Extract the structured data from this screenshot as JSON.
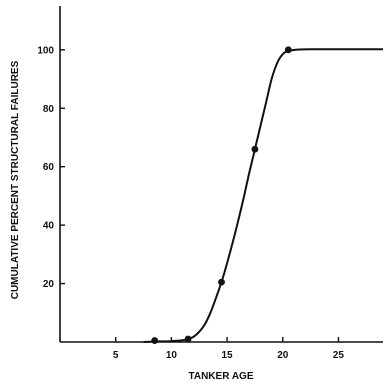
{
  "chart_data": {
    "type": "scatter",
    "title": "",
    "xlabel": "TANKER AGE",
    "ylabel": "CUMULATIVE PERCENT STRUCTURAL FAILURES",
    "xlim": [
      0,
      29
    ],
    "ylim": [
      0,
      115
    ],
    "x_ticks": [
      5,
      10,
      15,
      20,
      25
    ],
    "y_ticks": [
      20,
      40,
      60,
      80,
      100
    ],
    "grid": false,
    "legend": "none",
    "series": [
      {
        "points": [
          {
            "x": 8.5,
            "y": 0.5
          },
          {
            "x": 11.5,
            "y": 1
          },
          {
            "x": 14.5,
            "y": 20.5
          },
          {
            "x": 17.5,
            "y": 66
          },
          {
            "x": 20.5,
            "y": 100
          }
        ],
        "fit_curve": [
          [
            7.5,
            0
          ],
          [
            9,
            0.2
          ],
          [
            10,
            0.3
          ],
          [
            11,
            0.6
          ],
          [
            11.5,
            1
          ],
          [
            12,
            1.8
          ],
          [
            12.5,
            3.5
          ],
          [
            13,
            6
          ],
          [
            13.5,
            10
          ],
          [
            14,
            15
          ],
          [
            14.5,
            20.5
          ],
          [
            15,
            27
          ],
          [
            15.5,
            34
          ],
          [
            16,
            41.5
          ],
          [
            16.5,
            49.5
          ],
          [
            17,
            58
          ],
          [
            17.5,
            66
          ],
          [
            18,
            74
          ],
          [
            18.5,
            82
          ],
          [
            19,
            90
          ],
          [
            19.5,
            95.5
          ],
          [
            20,
            98.5
          ],
          [
            20.5,
            99.6
          ],
          [
            21.5,
            100.1
          ],
          [
            23,
            100.2
          ],
          [
            26,
            100.2
          ],
          [
            29,
            100.2
          ]
        ]
      }
    ],
    "colors": {
      "ink": "#111111",
      "background": "#ffffff"
    }
  }
}
